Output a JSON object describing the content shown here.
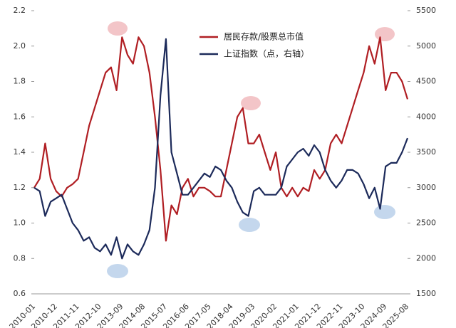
{
  "chart_data": {
    "type": "line",
    "categories": [
      "2010-01",
      null,
      null,
      null,
      "2010-12",
      null,
      null,
      null,
      "2011-11",
      null,
      null,
      null,
      "2012-10",
      null,
      null,
      null,
      "2013-09",
      null,
      null,
      null,
      "2014-08",
      null,
      null,
      null,
      "2015-07",
      null,
      null,
      null,
      "2016-06",
      null,
      null,
      null,
      "2017-05",
      null,
      null,
      null,
      "2018-04",
      null,
      null,
      null,
      "2019-03",
      null,
      null,
      null,
      "2020-02",
      null,
      null,
      null,
      "2021-01",
      null,
      null,
      null,
      "2021-12",
      null,
      null,
      null,
      "2022-11",
      null,
      null,
      null,
      "2023-10",
      null,
      null,
      null,
      "2024-09",
      null,
      null,
      null,
      "2025-08"
    ],
    "series": [
      {
        "name": "居民存款/股票总市值",
        "color": "#b01e23",
        "values": [
          1.2,
          1.25,
          1.45,
          1.25,
          1.18,
          1.15,
          1.2,
          1.22,
          1.25,
          1.4,
          1.55,
          1.65,
          1.75,
          1.85,
          1.88,
          1.75,
          2.05,
          1.95,
          1.9,
          2.05,
          2.0,
          1.85,
          1.6,
          1.3,
          0.9,
          1.1,
          1.05,
          1.2,
          1.25,
          1.15,
          1.2,
          1.2,
          1.18,
          1.15,
          1.15,
          1.3,
          1.45,
          1.6,
          1.65,
          1.45,
          1.45,
          1.5,
          1.4,
          1.3,
          1.4,
          1.2,
          1.15,
          1.2,
          1.15,
          1.2,
          1.18,
          1.3,
          1.25,
          1.3,
          1.45,
          1.5,
          1.45,
          1.55,
          1.65,
          1.75,
          1.85,
          2.0,
          1.9,
          2.05,
          1.75,
          1.85,
          1.85,
          1.8,
          1.7
        ]
      },
      {
        "name": "上证指数（点，右轴）",
        "color": "#1c2a5a",
        "axis": "y2",
        "values": [
          3000,
          2950,
          2600,
          2800,
          2850,
          2900,
          2700,
          2500,
          2400,
          2250,
          2300,
          2150,
          2100,
          2200,
          2050,
          2300,
          2000,
          2200,
          2100,
          2050,
          2200,
          2400,
          3000,
          4300,
          5100,
          3500,
          3200,
          2900,
          2900,
          3000,
          3100,
          3200,
          3150,
          3300,
          3250,
          3100,
          3000,
          2800,
          2650,
          2600,
          2950,
          3000,
          2900,
          2900,
          2900,
          3000,
          3300,
          3400,
          3500,
          3550,
          3450,
          3600,
          3500,
          3250,
          3100,
          3000,
          3100,
          3250,
          3250,
          3200,
          3050,
          2850,
          3000,
          2700,
          3300,
          3350,
          3350,
          3500,
          3700
        ]
      }
    ],
    "ylim": [
      0.6,
      2.2
    ],
    "yticks": [
      0.6,
      0.8,
      {
        "value": 1,
        "label": "1.0"
      },
      1.2,
      1.4,
      1.6,
      1.8,
      {
        "value": 2,
        "label": "2.0"
      },
      2.2
    ],
    "y2lim": [
      1500,
      5500
    ],
    "y2ticks": [
      1500,
      2000,
      2500,
      3000,
      3500,
      4000,
      4500,
      5000,
      5500
    ],
    "legend": "upper center"
  }
}
